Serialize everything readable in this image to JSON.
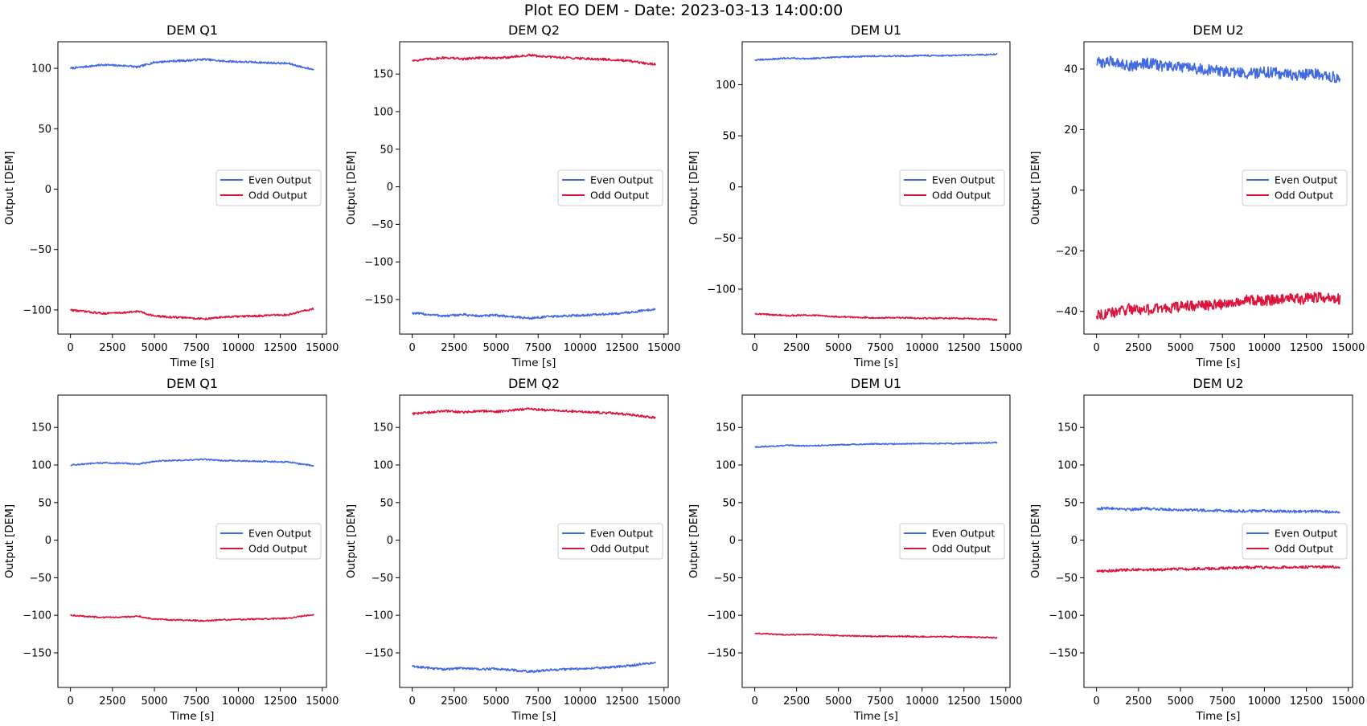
{
  "figure": {
    "title": "Plot EO DEM - Date: 2023-03-13 14:00:00"
  },
  "colors": {
    "even": "#4169e1",
    "odd": "#dc143c"
  },
  "chart_data": [
    {
      "type": "line",
      "title": "DEM Q1",
      "xlabel": "Time [s]",
      "ylabel": "Output [DEM]",
      "xlim": [
        -750,
        15250
      ],
      "ylim": [
        -120,
        122
      ],
      "xticks": [
        0,
        2500,
        5000,
        7500,
        10000,
        12500,
        15000
      ],
      "yticks": [
        -100,
        -50,
        0,
        50,
        100
      ],
      "legend": "center-right",
      "grid": false,
      "series": [
        {
          "name": "Even Output",
          "color": "#4169e1",
          "noise": 0.8,
          "x": [
            0,
            1000,
            2000,
            2500,
            3500,
            4000,
            5000,
            6000,
            7000,
            8000,
            9000,
            10000,
            11000,
            12000,
            13000,
            13800,
            14500
          ],
          "y": [
            100,
            101.5,
            103,
            102.5,
            102,
            101,
            105,
            106,
            106.5,
            107.5,
            106,
            105.5,
            105,
            104.5,
            104,
            101,
            99
          ]
        },
        {
          "name": "Odd Output",
          "color": "#dc143c",
          "noise": 0.8,
          "x": [
            0,
            1000,
            2000,
            2500,
            3500,
            4000,
            5000,
            6000,
            7000,
            8000,
            9000,
            10000,
            11000,
            12000,
            13000,
            13800,
            14500
          ],
          "y": [
            -100,
            -101.5,
            -103,
            -102.5,
            -102,
            -101,
            -105,
            -106,
            -106.5,
            -107.5,
            -106,
            -105.5,
            -105,
            -104.5,
            -104,
            -101,
            -99
          ]
        }
      ]
    },
    {
      "type": "line",
      "title": "DEM Q2",
      "xlabel": "Time [s]",
      "ylabel": "Output [DEM]",
      "xlim": [
        -750,
        15250
      ],
      "ylim": [
        -196,
        193
      ],
      "xticks": [
        0,
        2500,
        5000,
        7500,
        10000,
        12500,
        15000
      ],
      "yticks": [
        -150,
        -100,
        -50,
        0,
        50,
        100,
        150
      ],
      "legend": "center-right",
      "grid": false,
      "series": [
        {
          "name": "Even Output",
          "color": "#4169e1",
          "noise": 1.5,
          "x": [
            0,
            1000,
            2000,
            3000,
            4000,
            5000,
            6000,
            7000,
            8000,
            9000,
            10000,
            11000,
            12000,
            13000,
            14000,
            14500
          ],
          "y": [
            -168,
            -170,
            -172,
            -170,
            -172,
            -171,
            -173,
            -175,
            -173,
            -172,
            -171,
            -170,
            -169,
            -167,
            -164,
            -163
          ]
        },
        {
          "name": "Odd Output",
          "color": "#dc143c",
          "noise": 1.5,
          "x": [
            0,
            1000,
            2000,
            3000,
            4000,
            5000,
            6000,
            7000,
            8000,
            9000,
            10000,
            11000,
            12000,
            13000,
            14000,
            14500
          ],
          "y": [
            168,
            170,
            172,
            170,
            172,
            171,
            173,
            175,
            173,
            172,
            171,
            170,
            169,
            167,
            164,
            163
          ]
        }
      ]
    },
    {
      "type": "line",
      "title": "DEM U1",
      "xlabel": "Time [s]",
      "ylabel": "Output [DEM]",
      "xlim": [
        -750,
        15250
      ],
      "ylim": [
        -144,
        142
      ],
      "xticks": [
        0,
        2500,
        5000,
        7500,
        10000,
        12500,
        15000
      ],
      "yticks": [
        -100,
        -50,
        0,
        50,
        100
      ],
      "legend": "center-right",
      "grid": false,
      "series": [
        {
          "name": "Even Output",
          "color": "#4169e1",
          "noise": 0.7,
          "x": [
            0,
            1000,
            2000,
            3000,
            4000,
            5000,
            6000,
            7000,
            8000,
            9000,
            10000,
            11000,
            12000,
            13000,
            14000,
            14500
          ],
          "y": [
            124,
            125,
            126,
            125.5,
            126,
            127,
            127.5,
            128,
            128,
            128,
            128.5,
            128.5,
            128.5,
            129,
            129.5,
            130
          ]
        },
        {
          "name": "Odd Output",
          "color": "#dc143c",
          "noise": 0.7,
          "x": [
            0,
            1000,
            2000,
            3000,
            4000,
            5000,
            6000,
            7000,
            8000,
            9000,
            10000,
            11000,
            12000,
            13000,
            14000,
            14500
          ],
          "y": [
            -124,
            -125,
            -126,
            -125.5,
            -126,
            -127,
            -127.5,
            -128,
            -128,
            -128,
            -128.5,
            -128.5,
            -128.5,
            -129,
            -129.5,
            -130
          ]
        }
      ]
    },
    {
      "type": "line",
      "title": "DEM U2",
      "xlabel": "Time [s]",
      "ylabel": "Output [DEM]",
      "xlim": [
        -750,
        15250
      ],
      "ylim": [
        -47.5,
        49
      ],
      "xticks": [
        0,
        2500,
        5000,
        7500,
        10000,
        12500,
        15000
      ],
      "yticks": [
        -40,
        -20,
        0,
        20,
        40
      ],
      "legend": "center-right",
      "grid": false,
      "series": [
        {
          "name": "Even Output",
          "color": "#4169e1",
          "noise": 1.8,
          "x": [
            0,
            1000,
            2000,
            3000,
            4000,
            5000,
            6000,
            7000,
            8000,
            9000,
            10000,
            11000,
            12000,
            13000,
            14000,
            14500
          ],
          "y": [
            42,
            42.5,
            41,
            42,
            41,
            40.5,
            40,
            39.5,
            39,
            38.5,
            39,
            38.5,
            38,
            38.5,
            37.5,
            37
          ]
        },
        {
          "name": "Odd Output",
          "color": "#dc143c",
          "noise": 1.8,
          "x": [
            0,
            1000,
            2000,
            3000,
            4000,
            5000,
            6000,
            7000,
            8000,
            9000,
            10000,
            11000,
            12000,
            13000,
            14000,
            14500
          ],
          "y": [
            -41,
            -40.5,
            -39,
            -39.5,
            -39,
            -38.5,
            -38,
            -38,
            -37,
            -36,
            -36.5,
            -36,
            -36,
            -35.5,
            -35.5,
            -36
          ]
        }
      ]
    },
    {
      "type": "line",
      "title": "DEM Q1",
      "xlabel": "Time [s]",
      "ylabel": "Output [DEM]",
      "xlim": [
        -750,
        15250
      ],
      "ylim": [
        -196,
        193
      ],
      "xticks": [
        0,
        2500,
        5000,
        7500,
        10000,
        12500,
        15000
      ],
      "yticks": [
        -150,
        -100,
        -50,
        0,
        50,
        100,
        150
      ],
      "legend": "center-right",
      "grid": false,
      "series": [
        {
          "name": "Even Output",
          "color": "#4169e1",
          "noise": 0.9,
          "x": [
            0,
            1000,
            2000,
            2500,
            3500,
            4000,
            5000,
            6000,
            7000,
            8000,
            9000,
            10000,
            11000,
            12000,
            13000,
            13800,
            14500
          ],
          "y": [
            100,
            101.5,
            103,
            102.5,
            102,
            101,
            105,
            106,
            106.5,
            107.5,
            106,
            105.5,
            105,
            104.5,
            104,
            101,
            99
          ]
        },
        {
          "name": "Odd Output",
          "color": "#dc143c",
          "noise": 0.9,
          "x": [
            0,
            1000,
            2000,
            2500,
            3500,
            4000,
            5000,
            6000,
            7000,
            8000,
            9000,
            10000,
            11000,
            12000,
            13000,
            13800,
            14500
          ],
          "y": [
            -100,
            -101.5,
            -103,
            -102.5,
            -102,
            -101,
            -105,
            -106,
            -106.5,
            -107.5,
            -106,
            -105.5,
            -105,
            -104.5,
            -104,
            -101,
            -99
          ]
        }
      ]
    },
    {
      "type": "line",
      "title": "DEM Q2",
      "xlabel": "Time [s]",
      "ylabel": "Output [DEM]",
      "xlim": [
        -750,
        15250
      ],
      "ylim": [
        -196,
        193
      ],
      "xticks": [
        0,
        2500,
        5000,
        7500,
        10000,
        12500,
        15000
      ],
      "yticks": [
        -150,
        -100,
        -50,
        0,
        50,
        100,
        150
      ],
      "legend": "center-right",
      "grid": false,
      "series": [
        {
          "name": "Even Output",
          "color": "#4169e1",
          "noise": 1.5,
          "x": [
            0,
            1000,
            2000,
            3000,
            4000,
            5000,
            6000,
            7000,
            8000,
            9000,
            10000,
            11000,
            12000,
            13000,
            14000,
            14500
          ],
          "y": [
            -168,
            -170,
            -172,
            -170,
            -172,
            -171,
            -173,
            -175,
            -173,
            -172,
            -171,
            -170,
            -169,
            -167,
            -164,
            -163
          ]
        },
        {
          "name": "Odd Output",
          "color": "#dc143c",
          "noise": 1.5,
          "x": [
            0,
            1000,
            2000,
            3000,
            4000,
            5000,
            6000,
            7000,
            8000,
            9000,
            10000,
            11000,
            12000,
            13000,
            14000,
            14500
          ],
          "y": [
            168,
            170,
            172,
            170,
            172,
            171,
            173,
            175,
            173,
            172,
            171,
            170,
            169,
            167,
            164,
            163
          ]
        }
      ]
    },
    {
      "type": "line",
      "title": "DEM U1",
      "xlabel": "Time [s]",
      "ylabel": "Output [DEM]",
      "xlim": [
        -750,
        15250
      ],
      "ylim": [
        -196,
        193
      ],
      "xticks": [
        0,
        2500,
        5000,
        7500,
        10000,
        12500,
        15000
      ],
      "yticks": [
        -150,
        -100,
        -50,
        0,
        50,
        100,
        150
      ],
      "legend": "center-right",
      "grid": false,
      "series": [
        {
          "name": "Even Output",
          "color": "#4169e1",
          "noise": 0.8,
          "x": [
            0,
            1000,
            2000,
            3000,
            4000,
            5000,
            6000,
            7000,
            8000,
            9000,
            10000,
            11000,
            12000,
            13000,
            14000,
            14500
          ],
          "y": [
            124,
            125,
            126,
            125.5,
            126,
            127,
            127.5,
            128,
            128,
            128,
            128.5,
            128.5,
            128.5,
            129,
            129.5,
            130
          ]
        },
        {
          "name": "Odd Output",
          "color": "#dc143c",
          "noise": 0.8,
          "x": [
            0,
            1000,
            2000,
            3000,
            4000,
            5000,
            6000,
            7000,
            8000,
            9000,
            10000,
            11000,
            12000,
            13000,
            14000,
            14500
          ],
          "y": [
            -124,
            -125,
            -126,
            -125.5,
            -126,
            -127,
            -127.5,
            -128,
            -128,
            -128,
            -128.5,
            -128.5,
            -128.5,
            -129,
            -129.5,
            -130
          ]
        }
      ]
    },
    {
      "type": "line",
      "title": "DEM U2",
      "xlabel": "Time [s]",
      "ylabel": "Output [DEM]",
      "xlim": [
        -750,
        15250
      ],
      "ylim": [
        -196,
        193
      ],
      "xticks": [
        0,
        2500,
        5000,
        7500,
        10000,
        12500,
        15000
      ],
      "yticks": [
        -150,
        -100,
        -50,
        0,
        50,
        100,
        150
      ],
      "legend": "center-right",
      "grid": false,
      "series": [
        {
          "name": "Even Output",
          "color": "#4169e1",
          "noise": 1.8,
          "x": [
            0,
            1000,
            2000,
            3000,
            4000,
            5000,
            6000,
            7000,
            8000,
            9000,
            10000,
            11000,
            12000,
            13000,
            14000,
            14500
          ],
          "y": [
            42,
            42.5,
            41,
            42,
            41,
            40.5,
            40,
            39.5,
            39,
            38.5,
            39,
            38.5,
            38,
            38.5,
            37.5,
            37
          ]
        },
        {
          "name": "Odd Output",
          "color": "#dc143c",
          "noise": 1.8,
          "x": [
            0,
            1000,
            2000,
            3000,
            4000,
            5000,
            6000,
            7000,
            8000,
            9000,
            10000,
            11000,
            12000,
            13000,
            14000,
            14500
          ],
          "y": [
            -41,
            -40.5,
            -39,
            -39.5,
            -39,
            -38.5,
            -38,
            -38,
            -37,
            -36,
            -36.5,
            -36,
            -36,
            -35.5,
            -35.5,
            -36
          ]
        }
      ]
    }
  ]
}
